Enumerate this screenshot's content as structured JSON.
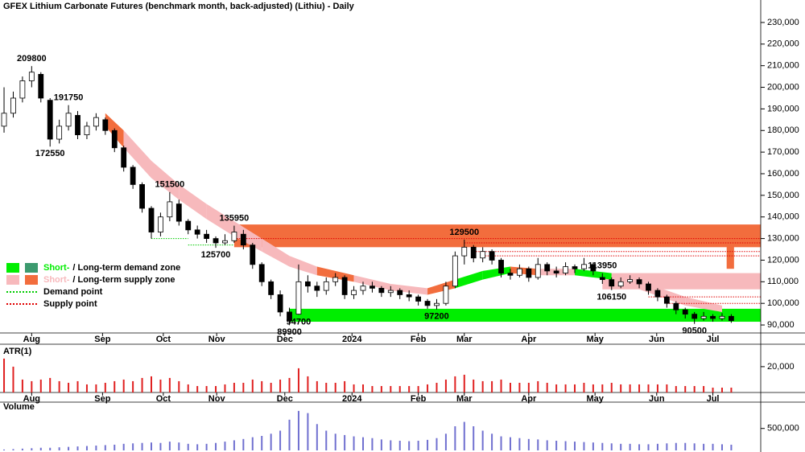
{
  "chart_data": {
    "type": "candlestick",
    "title": "GFEX Lithium Carbonate Futures (benchmark month, back-adjusted) (Lithiu) - Daily",
    "ohlc": [
      [
        182000,
        200000,
        179000,
        188000
      ],
      [
        188000,
        198000,
        186000,
        195000
      ],
      [
        195000,
        205000,
        193000,
        203000
      ],
      [
        203000,
        209800,
        200000,
        207000
      ],
      [
        206000,
        207000,
        193000,
        195000
      ],
      [
        194000,
        195000,
        172550,
        176000
      ],
      [
        176000,
        185000,
        174000,
        182000
      ],
      [
        182000,
        191750,
        180000,
        188000
      ],
      [
        187000,
        189000,
        176000,
        178000
      ],
      [
        178000,
        184000,
        176000,
        182000
      ],
      [
        182000,
        188000,
        180000,
        186000
      ],
      [
        185000,
        186000,
        178000,
        180000
      ],
      [
        180000,
        181000,
        170000,
        172000
      ],
      [
        172000,
        173000,
        161000,
        163000
      ],
      [
        163000,
        164000,
        153000,
        155000
      ],
      [
        155000,
        156000,
        142000,
        144000
      ],
      [
        144000,
        145000,
        130000,
        133000
      ],
      [
        133000,
        142000,
        131000,
        140000
      ],
      [
        140000,
        151500,
        138000,
        147000
      ],
      [
        146000,
        148000,
        136000,
        138000
      ],
      [
        138000,
        139000,
        132000,
        134000
      ],
      [
        134000,
        136000,
        130000,
        132000
      ],
      [
        132000,
        134000,
        128000,
        130000
      ],
      [
        130000,
        131000,
        125700,
        128000
      ],
      [
        128000,
        132000,
        127000,
        129000
      ],
      [
        129000,
        135950,
        128000,
        133000
      ],
      [
        132000,
        134000,
        125000,
        127000
      ],
      [
        127000,
        128000,
        116000,
        118000
      ],
      [
        118000,
        119000,
        108000,
        110000
      ],
      [
        110000,
        111000,
        102000,
        104000
      ],
      [
        104000,
        106000,
        94000,
        96000
      ],
      [
        96000,
        98000,
        89900,
        92000
      ],
      [
        95000,
        118000,
        94700,
        110000
      ],
      [
        110000,
        113000,
        105000,
        108000
      ],
      [
        108000,
        110000,
        103000,
        106000
      ],
      [
        106000,
        112000,
        104000,
        110000
      ],
      [
        110000,
        114000,
        108000,
        112000
      ],
      [
        112000,
        113000,
        102000,
        104000
      ],
      [
        104000,
        108000,
        102000,
        106000
      ],
      [
        106000,
        110000,
        104000,
        108000
      ],
      [
        108000,
        110000,
        105000,
        107000
      ],
      [
        107000,
        108000,
        103000,
        105000
      ],
      [
        105000,
        108000,
        103000,
        106000
      ],
      [
        106000,
        107000,
        102000,
        104000
      ],
      [
        104000,
        106000,
        101000,
        103000
      ],
      [
        103000,
        104000,
        99000,
        101000
      ],
      [
        101000,
        102000,
        97500,
        99000
      ],
      [
        99000,
        102000,
        97200,
        100000
      ],
      [
        100000,
        110000,
        99000,
        108000
      ],
      [
        108000,
        124000,
        107000,
        122000
      ],
      [
        122000,
        129500,
        118000,
        126000
      ],
      [
        126000,
        127000,
        119000,
        121000
      ],
      [
        121000,
        126000,
        119000,
        124000
      ],
      [
        124000,
        125000,
        118000,
        120000
      ],
      [
        120000,
        121000,
        112000,
        114000
      ],
      [
        114000,
        116000,
        111000,
        113000
      ],
      [
        113000,
        118000,
        112000,
        116000
      ],
      [
        116000,
        117000,
        110000,
        112000
      ],
      [
        112000,
        121000,
        111000,
        118000
      ],
      [
        118000,
        119000,
        113000,
        115000
      ],
      [
        115000,
        117000,
        112000,
        114000
      ],
      [
        114000,
        119000,
        113000,
        117000
      ],
      [
        117000,
        118000,
        114000,
        116000
      ],
      [
        116000,
        121000,
        115000,
        118000
      ],
      [
        118000,
        119000,
        113000,
        115000
      ],
      [
        112000,
        113950,
        109000,
        111000
      ],
      [
        111000,
        112000,
        106150,
        108000
      ],
      [
        108000,
        112000,
        107000,
        110000
      ],
      [
        110000,
        113000,
        109000,
        111000
      ],
      [
        111000,
        112000,
        107000,
        109000
      ],
      [
        109000,
        110000,
        104000,
        106000
      ],
      [
        106000,
        107000,
        101000,
        103000
      ],
      [
        103000,
        104000,
        98000,
        100000
      ],
      [
        100000,
        101000,
        95000,
        97000
      ],
      [
        97000,
        98000,
        93000,
        95000
      ],
      [
        95000,
        96000,
        90500,
        93000
      ],
      [
        93000,
        96000,
        92000,
        94000
      ],
      [
        94000,
        95000,
        91500,
        93000
      ],
      [
        93000,
        95500,
        92000,
        94000
      ],
      [
        94000,
        95000,
        91000,
        92000
      ]
    ],
    "xlim": [
      -0.44,
      82.2
    ],
    "xticks": [
      {
        "value": 3,
        "label": "Aug"
      },
      {
        "value": 10.7,
        "label": "Sep"
      },
      {
        "value": 17.3,
        "label": "Oct"
      },
      {
        "value": 23.1,
        "label": "Nov"
      },
      {
        "value": 30.5,
        "label": "Dec"
      },
      {
        "value": 37.8,
        "label": "2024"
      },
      {
        "value": 45,
        "label": "Feb"
      },
      {
        "value": 50,
        "label": "Mar"
      },
      {
        "value": 57,
        "label": "Apr"
      },
      {
        "value": 64.2,
        "label": "May"
      },
      {
        "value": 70.9,
        "label": "Jun"
      },
      {
        "value": 77,
        "label": "Jul"
      }
    ],
    "ylim": [
      86300,
      240400
    ],
    "yticks": [
      {
        "value": 90000,
        "label": "90,000"
      },
      {
        "value": 100000,
        "label": "100,000"
      },
      {
        "value": 110000,
        "label": "110,000"
      },
      {
        "value": 120000,
        "label": "120,000"
      },
      {
        "value": 130000,
        "label": "130,000"
      },
      {
        "value": 140000,
        "label": "140,000"
      },
      {
        "value": 150000,
        "label": "150,000"
      },
      {
        "value": 160000,
        "label": "160,000"
      },
      {
        "value": 170000,
        "label": "170,000"
      },
      {
        "value": 180000,
        "label": "180,000"
      },
      {
        "value": 190000,
        "label": "190,000"
      },
      {
        "value": 200000,
        "label": "200,000"
      },
      {
        "value": 210000,
        "label": "210,000"
      },
      {
        "value": 220000,
        "label": "220,000"
      },
      {
        "value": 230000,
        "label": "230,000"
      }
    ],
    "annotations": [
      {
        "value": 209800,
        "x": 3,
        "pos": "above"
      },
      {
        "value": 172550,
        "x": 5,
        "pos": "below"
      },
      {
        "value": 191750,
        "x": 7,
        "pos": "above"
      },
      {
        "value": 151500,
        "x": 18,
        "pos": "above"
      },
      {
        "value": 125700,
        "x": 23,
        "pos": "below"
      },
      {
        "value": 135950,
        "x": 25,
        "pos": "above"
      },
      {
        "value": 89900,
        "x": 31,
        "pos": "below"
      },
      {
        "value": 94700,
        "x": 32,
        "pos": "below"
      },
      {
        "value": 97200,
        "x": 47,
        "pos": "below"
      },
      {
        "value": 129500,
        "x": 50,
        "pos": "above"
      },
      {
        "value": 113950,
        "x": 65,
        "pos": "above"
      },
      {
        "value": 106150,
        "x": 66,
        "pos": "below"
      },
      {
        "value": 90500,
        "x": 75,
        "pos": "below"
      }
    ],
    "zones": [
      {
        "kind": "supply-long",
        "lo": 126000,
        "hi": 136500,
        "from": 25,
        "to": 82.2
      },
      {
        "kind": "demand-short",
        "lo": 91500,
        "hi": 97500,
        "from": 31,
        "to": 82.2
      },
      {
        "kind": "supply-short",
        "lo": 106500,
        "hi": 114000,
        "from": 65,
        "to": 82.2
      },
      {
        "kind": "supply-long",
        "lo": 116000,
        "hi": 127000,
        "from": 78.5,
        "to": 79.3
      }
    ],
    "levels": [
      {
        "kind": "demand",
        "value": 130000,
        "from": 16,
        "to": 20
      },
      {
        "kind": "demand",
        "value": 127000,
        "from": 20,
        "to": 25
      },
      {
        "kind": "supply",
        "value": 130000,
        "from": 25,
        "to": 82.2
      },
      {
        "kind": "supply",
        "value": 128000,
        "from": 50,
        "to": 82.2
      },
      {
        "kind": "supply",
        "value": 124000,
        "from": 51,
        "to": 82.2
      },
      {
        "kind": "supply",
        "value": 122000,
        "from": 52,
        "to": 82.2
      },
      {
        "kind": "supply",
        "value": 103000,
        "from": 70,
        "to": 82.2
      },
      {
        "kind": "supply",
        "value": 100000,
        "from": 72,
        "to": 82.2
      }
    ],
    "band": [
      {
        "x": 11,
        "upper": 188000,
        "lower": 182000,
        "state": "supply-long"
      },
      {
        "x": 13,
        "upper": 180000,
        "lower": 172000,
        "state": "supply-short"
      },
      {
        "x": 16,
        "upper": 166000,
        "lower": 158000,
        "state": "supply-short"
      },
      {
        "x": 19,
        "upper": 155000,
        "lower": 148000,
        "state": "supply-short"
      },
      {
        "x": 22,
        "upper": 146000,
        "lower": 139000,
        "state": "supply-short"
      },
      {
        "x": 25,
        "upper": 138000,
        "lower": 131000,
        "state": "supply-short"
      },
      {
        "x": 28,
        "upper": 130000,
        "lower": 124000,
        "state": "supply-short"
      },
      {
        "x": 31,
        "upper": 122000,
        "lower": 117000,
        "state": "supply-short"
      },
      {
        "x": 34,
        "upper": 117000,
        "lower": 113000,
        "state": "supply-long"
      },
      {
        "x": 38,
        "upper": 113000,
        "lower": 110000,
        "state": "supply-short"
      },
      {
        "x": 42,
        "upper": 109000,
        "lower": 106000,
        "state": "supply-short"
      },
      {
        "x": 46,
        "upper": 107000,
        "lower": 104000,
        "state": "supply-long"
      },
      {
        "x": 49,
        "upper": 111000,
        "lower": 107000,
        "state": "demand-short"
      },
      {
        "x": 52,
        "upper": 115000,
        "lower": 111000,
        "state": "demand-short"
      },
      {
        "x": 55,
        "upper": 117000,
        "lower": 114000,
        "state": "supply-long"
      },
      {
        "x": 58,
        "upper": 116000,
        "lower": 113000,
        "state": "supply-short"
      },
      {
        "x": 62,
        "upper": 116000,
        "lower": 113000,
        "state": "demand-short"
      },
      {
        "x": 66,
        "upper": 114000,
        "lower": 111000,
        "state": "supply-short"
      },
      {
        "x": 70,
        "upper": 109000,
        "lower": 105000,
        "state": "supply-short"
      },
      {
        "x": 74,
        "upper": 103000,
        "lower": 99000,
        "state": "supply-short"
      },
      {
        "x": 78,
        "upper": 99000,
        "lower": 96000,
        "state": "supply-short"
      }
    ],
    "colors": {
      "demand-short": "#00ee00",
      "demand-long": "#3c9a6e",
      "supply-short": "#f7b9bc",
      "supply-long": "#f26d3d",
      "demand": "#00cc00",
      "supply": "#e00000",
      "atr": "#e02020",
      "volume": "#7070d0"
    },
    "legend": [
      {
        "swatches": [
          "demand-short",
          "demand-long"
        ],
        "parts": [
          {
            "text": "Short-",
            "color": "demand-short"
          },
          {
            "text": "/ Long-term demand zone"
          }
        ]
      },
      {
        "swatches": [
          "supply-short",
          "supply-long"
        ],
        "parts": [
          {
            "text": "Short-",
            "color": "supply-short"
          },
          {
            "text": "/ Long-term supply zone"
          }
        ]
      },
      {
        "line": "demand",
        "parts": [
          {
            "text": "Demand point"
          }
        ]
      },
      {
        "line": "supply",
        "parts": [
          {
            "text": "Supply point"
          }
        ]
      }
    ],
    "atr": {
      "title": "ATR(1)",
      "values": [
        25000,
        20000,
        12000,
        11000,
        12000,
        13000,
        11000,
        10000,
        11000,
        9000,
        9000,
        10000,
        11000,
        12000,
        11000,
        13000,
        14000,
        12000,
        13000,
        11000,
        9000,
        8000,
        8000,
        8000,
        9000,
        10000,
        10000,
        12000,
        11000,
        10000,
        12000,
        13000,
        19000,
        14000,
        11000,
        10000,
        10000,
        11000,
        9000,
        9000,
        8000,
        8000,
        8000,
        8000,
        8000,
        8000,
        9000,
        10000,
        12000,
        14000,
        15000,
        12000,
        11000,
        11000,
        12000,
        10000,
        10000,
        10000,
        11000,
        10000,
        9000,
        9000,
        9000,
        10000,
        9000,
        9000,
        10000,
        9000,
        9000,
        9000,
        9000,
        9000,
        9000,
        8000,
        8000,
        8000,
        8000,
        7000,
        7000,
        7000
      ],
      "ylim": [
        4000,
        33900
      ],
      "yticks": [
        {
          "value": 20000,
          "label": "20,000"
        }
      ]
    },
    "volume": {
      "title": "Volume",
      "values": [
        20000,
        30000,
        40000,
        50000,
        60000,
        60000,
        70000,
        80000,
        90000,
        100000,
        110000,
        120000,
        130000,
        150000,
        160000,
        170000,
        180000,
        170000,
        200000,
        180000,
        150000,
        140000,
        150000,
        170000,
        200000,
        230000,
        260000,
        300000,
        330000,
        380000,
        450000,
        700000,
        900000,
        850000,
        600000,
        450000,
        380000,
        350000,
        320000,
        300000,
        280000,
        250000,
        230000,
        220000,
        210000,
        220000,
        240000,
        280000,
        380000,
        550000,
        650000,
        550000,
        450000,
        380000,
        320000,
        300000,
        280000,
        260000,
        250000,
        230000,
        220000,
        210000,
        200000,
        190000,
        180000,
        170000,
        160000,
        150000,
        150000,
        140000,
        140000,
        150000,
        160000,
        170000,
        170000,
        160000,
        150000,
        150000,
        140000,
        130000
      ],
      "ylim": [
        0,
        1100000
      ],
      "yticks": [
        {
          "value": 500000,
          "label": "500,000"
        }
      ]
    }
  }
}
